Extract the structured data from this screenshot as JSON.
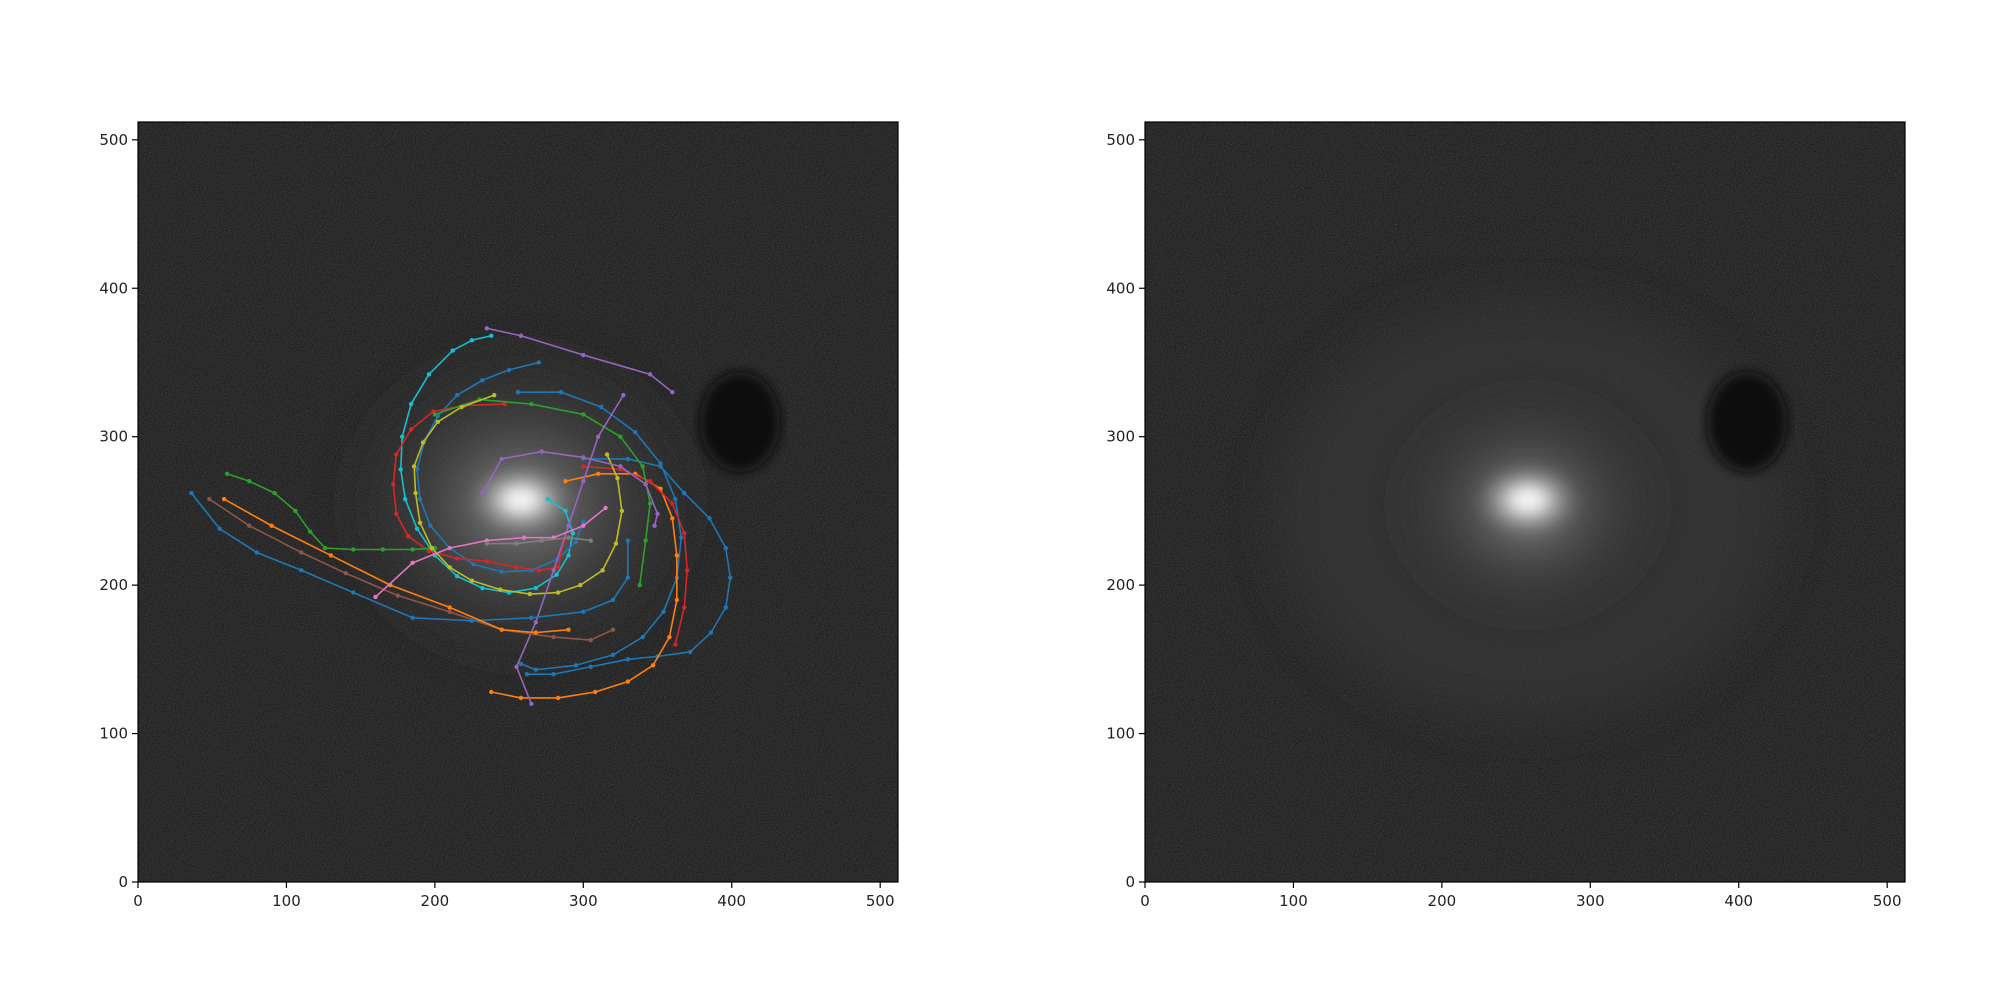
{
  "figure": {
    "background": "#ffffff"
  },
  "chart_data": [
    {
      "type": "scatter",
      "panel": "left",
      "image": "galaxy-spiral-grayscale",
      "title": "",
      "xlabel": "",
      "ylabel": "",
      "xlim": [
        0,
        512
      ],
      "ylim": [
        0,
        512
      ],
      "xticks": [
        0,
        100,
        200,
        300,
        400,
        500
      ],
      "yticks": [
        0,
        100,
        200,
        300,
        400,
        500
      ],
      "xtick_labels": [
        "0",
        "100",
        "200",
        "300",
        "400",
        "500"
      ],
      "ytick_labels": [
        "0",
        "100",
        "200",
        "300",
        "400",
        "500"
      ],
      "grid": false,
      "galaxy": {
        "core": [
          258,
          255
        ],
        "dark_patch": [
          405,
          305
        ]
      },
      "series": [
        {
          "color": "#17becf",
          "points": [
            [
              238,
              368
            ],
            [
              225,
              365
            ],
            [
              212,
              358
            ],
            [
              196,
              342
            ],
            [
              184,
              322
            ],
            [
              178,
              300
            ],
            [
              177,
              278
            ],
            [
              180,
              258
            ],
            [
              188,
              238
            ],
            [
              200,
              220
            ],
            [
              215,
              206
            ],
            [
              232,
              198
            ],
            [
              250,
              195
            ],
            [
              268,
              198
            ],
            [
              282,
              207
            ],
            [
              290,
              220
            ],
            [
              293,
              235
            ],
            [
              288,
              250
            ],
            [
              276,
              258
            ]
          ]
        },
        {
          "color": "#1f77b4",
          "points": [
            [
              270,
              350
            ],
            [
              250,
              345
            ],
            [
              232,
              338
            ],
            [
              215,
              328
            ],
            [
              202,
              314
            ],
            [
              193,
              297
            ],
            [
              188,
              278
            ],
            [
              190,
              258
            ],
            [
              197,
              240
            ],
            [
              210,
              225
            ],
            [
              226,
              214
            ],
            [
              245,
              209
            ],
            [
              265,
              210
            ],
            [
              282,
              217
            ],
            [
              295,
              229
            ],
            [
              300,
              243
            ]
          ]
        },
        {
          "color": "#1f77b4",
          "points": [
            [
              256,
              330
            ],
            [
              285,
              330
            ],
            [
              312,
              320
            ],
            [
              335,
              303
            ],
            [
              352,
              282
            ],
            [
              362,
              258
            ],
            [
              366,
              232
            ],
            [
              363,
              205
            ],
            [
              354,
              182
            ],
            [
              340,
              165
            ],
            [
              320,
              153
            ],
            [
              295,
              146
            ],
            [
              268,
              143
            ],
            [
              258,
              147
            ]
          ]
        },
        {
          "color": "#1f77b4",
          "points": [
            [
              300,
              285
            ],
            [
              330,
              285
            ],
            [
              352,
              280
            ],
            [
              368,
              262
            ],
            [
              385,
              245
            ],
            [
              396,
              225
            ],
            [
              399,
              205
            ],
            [
              396,
              185
            ],
            [
              386,
              168
            ],
            [
              372,
              155
            ],
            [
              350,
              152
            ],
            [
              330,
              150
            ],
            [
              305,
              145
            ],
            [
              280,
              140
            ],
            [
              262,
              140
            ]
          ]
        },
        {
          "color": "#ff7f0e",
          "points": [
            [
              288,
              270
            ],
            [
              310,
              275
            ],
            [
              335,
              275
            ],
            [
              352,
              265
            ],
            [
              360,
              245
            ],
            [
              363,
              220
            ],
            [
              363,
              190
            ],
            [
              358,
              165
            ],
            [
              347,
              146
            ],
            [
              330,
              135
            ],
            [
              308,
              128
            ],
            [
              283,
              124
            ],
            [
              258,
              124
            ],
            [
              238,
              128
            ]
          ]
        },
        {
          "color": "#d62728",
          "points": [
            [
              247,
              322
            ],
            [
              220,
              321
            ],
            [
              199,
              317
            ],
            [
              184,
              305
            ],
            [
              174,
              288
            ],
            [
              172,
              268
            ],
            [
              174,
              248
            ],
            [
              182,
              233
            ],
            [
              196,
              223
            ],
            [
              215,
              218
            ],
            [
              235,
              216
            ],
            [
              255,
              212
            ],
            [
              270,
              210
            ],
            [
              283,
              212
            ],
            [
              287,
              230
            ]
          ]
        },
        {
          "color": "#d62728",
          "points": [
            [
              300,
              280
            ],
            [
              325,
              278
            ],
            [
              345,
              270
            ],
            [
              360,
              255
            ],
            [
              368,
              235
            ],
            [
              370,
              210
            ],
            [
              368,
              185
            ],
            [
              362,
              160
            ]
          ]
        },
        {
          "color": "#2ca02c",
          "points": [
            [
              60,
              275
            ],
            [
              75,
              270
            ],
            [
              92,
              262
            ],
            [
              106,
              250
            ],
            [
              116,
              236
            ],
            [
              126,
              225
            ],
            [
              145,
              224
            ],
            [
              165,
              224
            ],
            [
              185,
              224
            ],
            [
              200,
              225
            ]
          ]
        },
        {
          "color": "#2ca02c",
          "points": [
            [
              200,
              315
            ],
            [
              230,
              325
            ],
            [
              265,
              322
            ],
            [
              300,
              315
            ],
            [
              325,
              300
            ],
            [
              340,
              280
            ],
            [
              345,
              255
            ],
            [
              342,
              230
            ],
            [
              338,
              200
            ]
          ]
        },
        {
          "color": "#bcbd22",
          "points": [
            [
              240,
              328
            ],
            [
              218,
              320
            ],
            [
              202,
              310
            ],
            [
              192,
              296
            ],
            [
              186,
              280
            ],
            [
              187,
              262
            ],
            [
              190,
              242
            ],
            [
              198,
              225
            ],
            [
              210,
              212
            ],
            [
              225,
              203
            ],
            [
              244,
              197
            ],
            [
              264,
              194
            ],
            [
              283,
              195
            ],
            [
              298,
              200
            ],
            [
              313,
              210
            ],
            [
              322,
              228
            ],
            [
              326,
              250
            ],
            [
              323,
              272
            ],
            [
              316,
              288
            ]
          ]
        },
        {
          "color": "#9467bd",
          "points": [
            [
              235,
              373
            ],
            [
              258,
              368
            ],
            [
              300,
              355
            ],
            [
              345,
              342
            ],
            [
              360,
              330
            ]
          ]
        },
        {
          "color": "#9467bd",
          "points": [
            [
              232,
              262
            ],
            [
              245,
              285
            ],
            [
              272,
              290
            ],
            [
              300,
              286
            ],
            [
              325,
              280
            ],
            [
              342,
              268
            ],
            [
              350,
              248
            ],
            [
              348,
              240
            ]
          ]
        },
        {
          "color": "#9467bd",
          "points": [
            [
              327,
              328
            ],
            [
              310,
              300
            ],
            [
              300,
              270
            ],
            [
              290,
              240
            ],
            [
              280,
              210
            ],
            [
              268,
              175
            ],
            [
              255,
              145
            ],
            [
              265,
              120
            ]
          ]
        },
        {
          "color": "#8c564b",
          "points": [
            [
              48,
              258
            ],
            [
              75,
              240
            ],
            [
              110,
              222
            ],
            [
              140,
              208
            ],
            [
              175,
              193
            ],
            [
              210,
              182
            ],
            [
              245,
              170
            ],
            [
              280,
              165
            ],
            [
              305,
              163
            ],
            [
              320,
              170
            ]
          ]
        },
        {
          "color": "#1f77b4",
          "points": [
            [
              36,
              262
            ],
            [
              55,
              238
            ],
            [
              80,
              222
            ],
            [
              110,
              210
            ],
            [
              145,
              195
            ],
            [
              185,
              178
            ],
            [
              225,
              176
            ],
            [
              265,
              178
            ],
            [
              300,
              182
            ],
            [
              320,
              190
            ],
            [
              330,
              205
            ],
            [
              330,
              230
            ]
          ]
        },
        {
          "color": "#ff7f0e",
          "points": [
            [
              58,
              258
            ],
            [
              90,
              240
            ],
            [
              130,
              220
            ],
            [
              170,
              200
            ],
            [
              210,
              185
            ],
            [
              245,
              170
            ],
            [
              268,
              168
            ],
            [
              290,
              170
            ]
          ]
        },
        {
          "color": "#e377c2",
          "points": [
            [
              160,
              192
            ],
            [
              185,
              215
            ],
            [
              210,
              225
            ],
            [
              235,
              230
            ],
            [
              260,
              232
            ],
            [
              280,
              232
            ],
            [
              300,
              240
            ],
            [
              315,
              252
            ]
          ]
        },
        {
          "color": "#7f7f7f",
          "points": [
            [
              235,
              228
            ],
            [
              255,
              228
            ],
            [
              272,
              230
            ],
            [
              290,
              232
            ],
            [
              305,
              230
            ]
          ]
        }
      ]
    },
    {
      "type": "heatmap",
      "panel": "right",
      "image": "galaxy-spiral-grayscale",
      "title": "",
      "xlabel": "",
      "ylabel": "",
      "xlim": [
        0,
        512
      ],
      "ylim": [
        0,
        512
      ],
      "xticks": [
        0,
        100,
        200,
        300,
        400,
        500
      ],
      "yticks": [
        0,
        100,
        200,
        300,
        400,
        500
      ],
      "xtick_labels": [
        "0",
        "100",
        "200",
        "300",
        "400",
        "500"
      ],
      "ytick_labels": [
        "0",
        "100",
        "200",
        "300",
        "400",
        "500"
      ],
      "grid": false,
      "galaxy": {
        "core": [
          258,
          255
        ],
        "dark_patch": [
          405,
          305
        ]
      },
      "series": []
    }
  ]
}
